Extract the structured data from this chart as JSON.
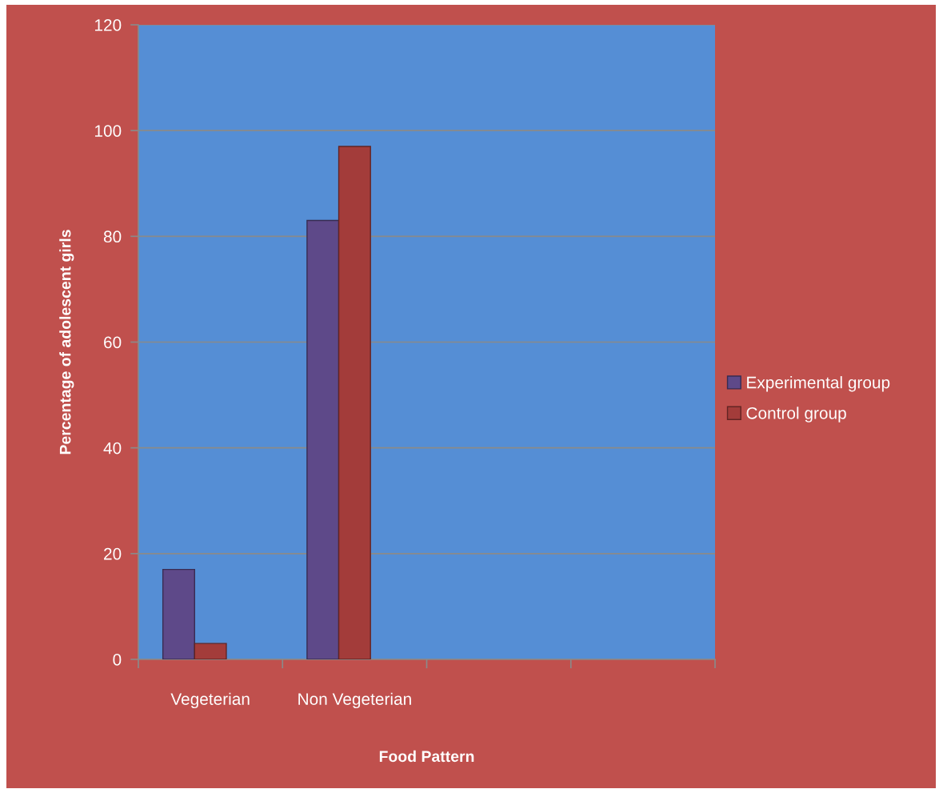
{
  "chart_data": {
    "type": "bar",
    "categories": [
      "Vegeterian",
      "Non Vegeterian",
      null,
      null
    ],
    "series": [
      {
        "name": "Experimental group",
        "color": "#5e4989",
        "values": [
          17,
          83,
          null,
          null
        ]
      },
      {
        "name": "Control group",
        "color": "#a33c3a",
        "values": [
          3,
          97,
          null,
          null
        ]
      }
    ],
    "xlabel": "Food Pattern",
    "ylabel": "Percentage of adolescent girls",
    "ylim": [
      0,
      120
    ],
    "yticks": [
      0,
      20,
      40,
      60,
      80,
      100,
      120
    ],
    "grid": "y",
    "legend": "right"
  }
}
